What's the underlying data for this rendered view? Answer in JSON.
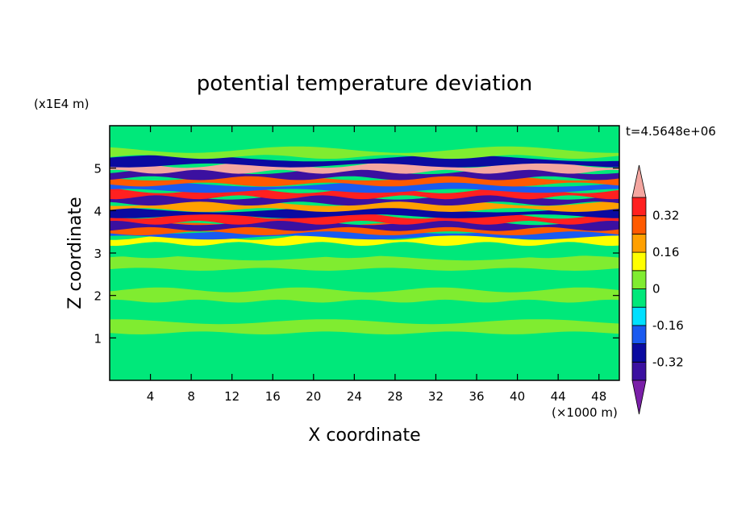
{
  "chart_data": {
    "type": "heatmap",
    "title": "potential temperature deviation",
    "xlabel": "X coordinate",
    "ylabel": "Z coordinate",
    "x_unit": "(×1000 m)",
    "y_unit": "(x1E4 m)",
    "time_label": "t=4.5648e+06",
    "xlim": [
      0,
      50
    ],
    "ylim": [
      0,
      6
    ],
    "x_ticks": [
      4,
      8,
      12,
      16,
      20,
      24,
      28,
      32,
      36,
      40,
      44,
      48
    ],
    "y_ticks": [
      1,
      2,
      3,
      4,
      5
    ],
    "colorbar": {
      "levels": [
        -0.4,
        -0.32,
        -0.24,
        -0.16,
        -0.08,
        0,
        0.08,
        0.16,
        0.24,
        0.32,
        0.4
      ],
      "colors": [
        "#7a1fa8",
        "#3b10a0",
        "#0a0aa0",
        "#1a5af0",
        "#00e0ff",
        "#00e87a",
        "#80ec30",
        "#ffff00",
        "#ffa000",
        "#ff5a00",
        "#ff2020",
        "#f4a6a0"
      ],
      "tick_labels": [
        "0.32",
        "0.16",
        "0",
        "-0.16",
        "-0.32"
      ],
      "tick_values": [
        0.32,
        0.16,
        0,
        -0.16,
        -0.32
      ]
    },
    "bands": [
      {
        "y": 0.9,
        "value": -0.02
      },
      {
        "y": 1.25,
        "value": 0.03
      },
      {
        "y": 1.6,
        "value": -0.02
      },
      {
        "y": 2.0,
        "value": 0.03
      },
      {
        "y": 2.4,
        "value": -0.02
      },
      {
        "y": 2.75,
        "value": 0.04
      },
      {
        "y": 3.05,
        "value": -0.03
      },
      {
        "y": 3.3,
        "value": 0.12
      },
      {
        "y": 3.45,
        "value": -0.2
      },
      {
        "y": 3.55,
        "value": 0.3
      },
      {
        "y": 3.65,
        "value": -0.38
      },
      {
        "y": 3.8,
        "value": 0.36
      },
      {
        "y": 3.95,
        "value": -0.3
      },
      {
        "y": 4.1,
        "value": 0.2
      },
      {
        "y": 4.25,
        "value": -0.35
      },
      {
        "y": 4.4,
        "value": 0.38
      },
      {
        "y": 4.55,
        "value": -0.22
      },
      {
        "y": 4.7,
        "value": 0.3
      },
      {
        "y": 4.85,
        "value": -0.38
      },
      {
        "y": 5.0,
        "value": 0.42
      },
      {
        "y": 5.15,
        "value": -0.3
      },
      {
        "y": 5.35,
        "value": 0.06
      }
    ]
  }
}
